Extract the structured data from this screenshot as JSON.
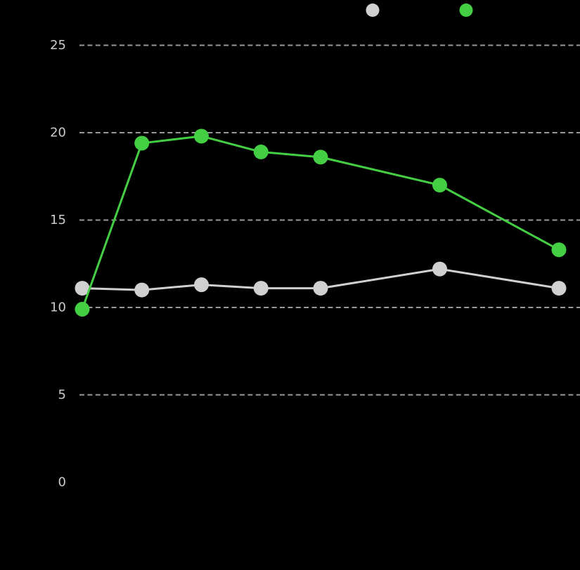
{
  "chart_data": {
    "type": "line",
    "title": "",
    "x": [
      0,
      1,
      2,
      3,
      4,
      6,
      8
    ],
    "series": [
      {
        "name": "series-gray",
        "color": "#d0d0d0",
        "values": [
          11.1,
          11.0,
          11.3,
          11.1,
          11.1,
          12.2,
          11.1
        ]
      },
      {
        "name": "series-green",
        "color": "#43ce43",
        "values": [
          9.9,
          19.4,
          19.8,
          18.9,
          18.6,
          17.0,
          13.3
        ]
      }
    ],
    "yticks": [
      25,
      20,
      15,
      10,
      5,
      0
    ],
    "gridline_yticks": [
      25,
      20,
      15,
      10,
      5
    ],
    "ylim": [
      0,
      27.5
    ],
    "xlim": [
      0,
      8.35
    ],
    "grid": "horizontal-dashed",
    "legend_position": "top-center",
    "legend_labels_visible": false,
    "x_tick_labels_visible": false,
    "background_color": "#000000",
    "tick_label_color": "#cccccc",
    "gridline_color": "#999999"
  },
  "legend": {
    "markers": [
      {
        "name": "legend-marker-gray",
        "color": "#d0d0d0"
      },
      {
        "name": "legend-marker-green",
        "color": "#43ce43"
      }
    ]
  }
}
